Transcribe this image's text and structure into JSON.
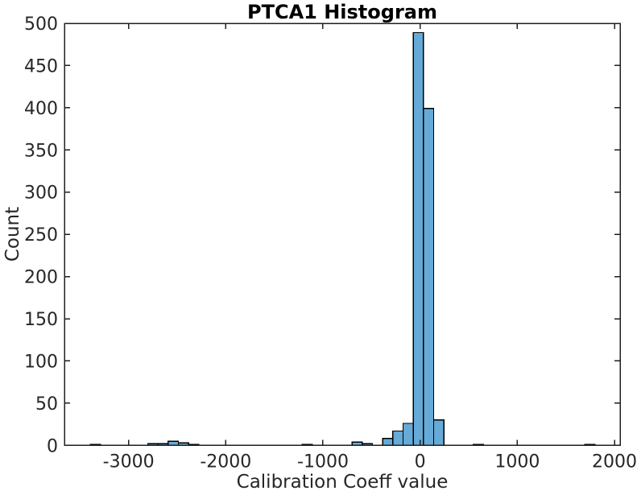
{
  "colors": {
    "background": "#ffffff",
    "bar_fill": "#66aad7",
    "bar_edge": "#000000",
    "axis": "#1f1f1f",
    "tick_label": "#262626",
    "label": "#262626",
    "title": "#000000"
  },
  "chart_data": {
    "type": "bar",
    "subtype": "histogram",
    "title": "PTCA1 Histogram",
    "xlabel": "Calibration Coeff value",
    "ylabel": "Count",
    "xlim": [
      -3660,
      2058
    ],
    "ylim": [
      0,
      500
    ],
    "x_ticks": [
      -3000,
      -2000,
      -1000,
      0,
      1000,
      2000
    ],
    "y_ticks": [
      0,
      50,
      100,
      150,
      200,
      250,
      300,
      350,
      400,
      450,
      500
    ],
    "grid": false,
    "legend_position": "none",
    "bin_width": 105,
    "bins": [
      {
        "center": -3340,
        "count": 1
      },
      {
        "center": -2750,
        "count": 2
      },
      {
        "center": -2645,
        "count": 2
      },
      {
        "center": -2540,
        "count": 5
      },
      {
        "center": -2435,
        "count": 3
      },
      {
        "center": -2330,
        "count": 1
      },
      {
        "center": -1160,
        "count": 1
      },
      {
        "center": -648,
        "count": 4
      },
      {
        "center": -543,
        "count": 2
      },
      {
        "center": -333,
        "count": 8
      },
      {
        "center": -228,
        "count": 17
      },
      {
        "center": -123,
        "count": 26
      },
      {
        "center": -18,
        "count": 489
      },
      {
        "center": 87,
        "count": 399
      },
      {
        "center": 192,
        "count": 30
      },
      {
        "center": 600,
        "count": 1
      },
      {
        "center": 1748,
        "count": 1
      }
    ]
  }
}
